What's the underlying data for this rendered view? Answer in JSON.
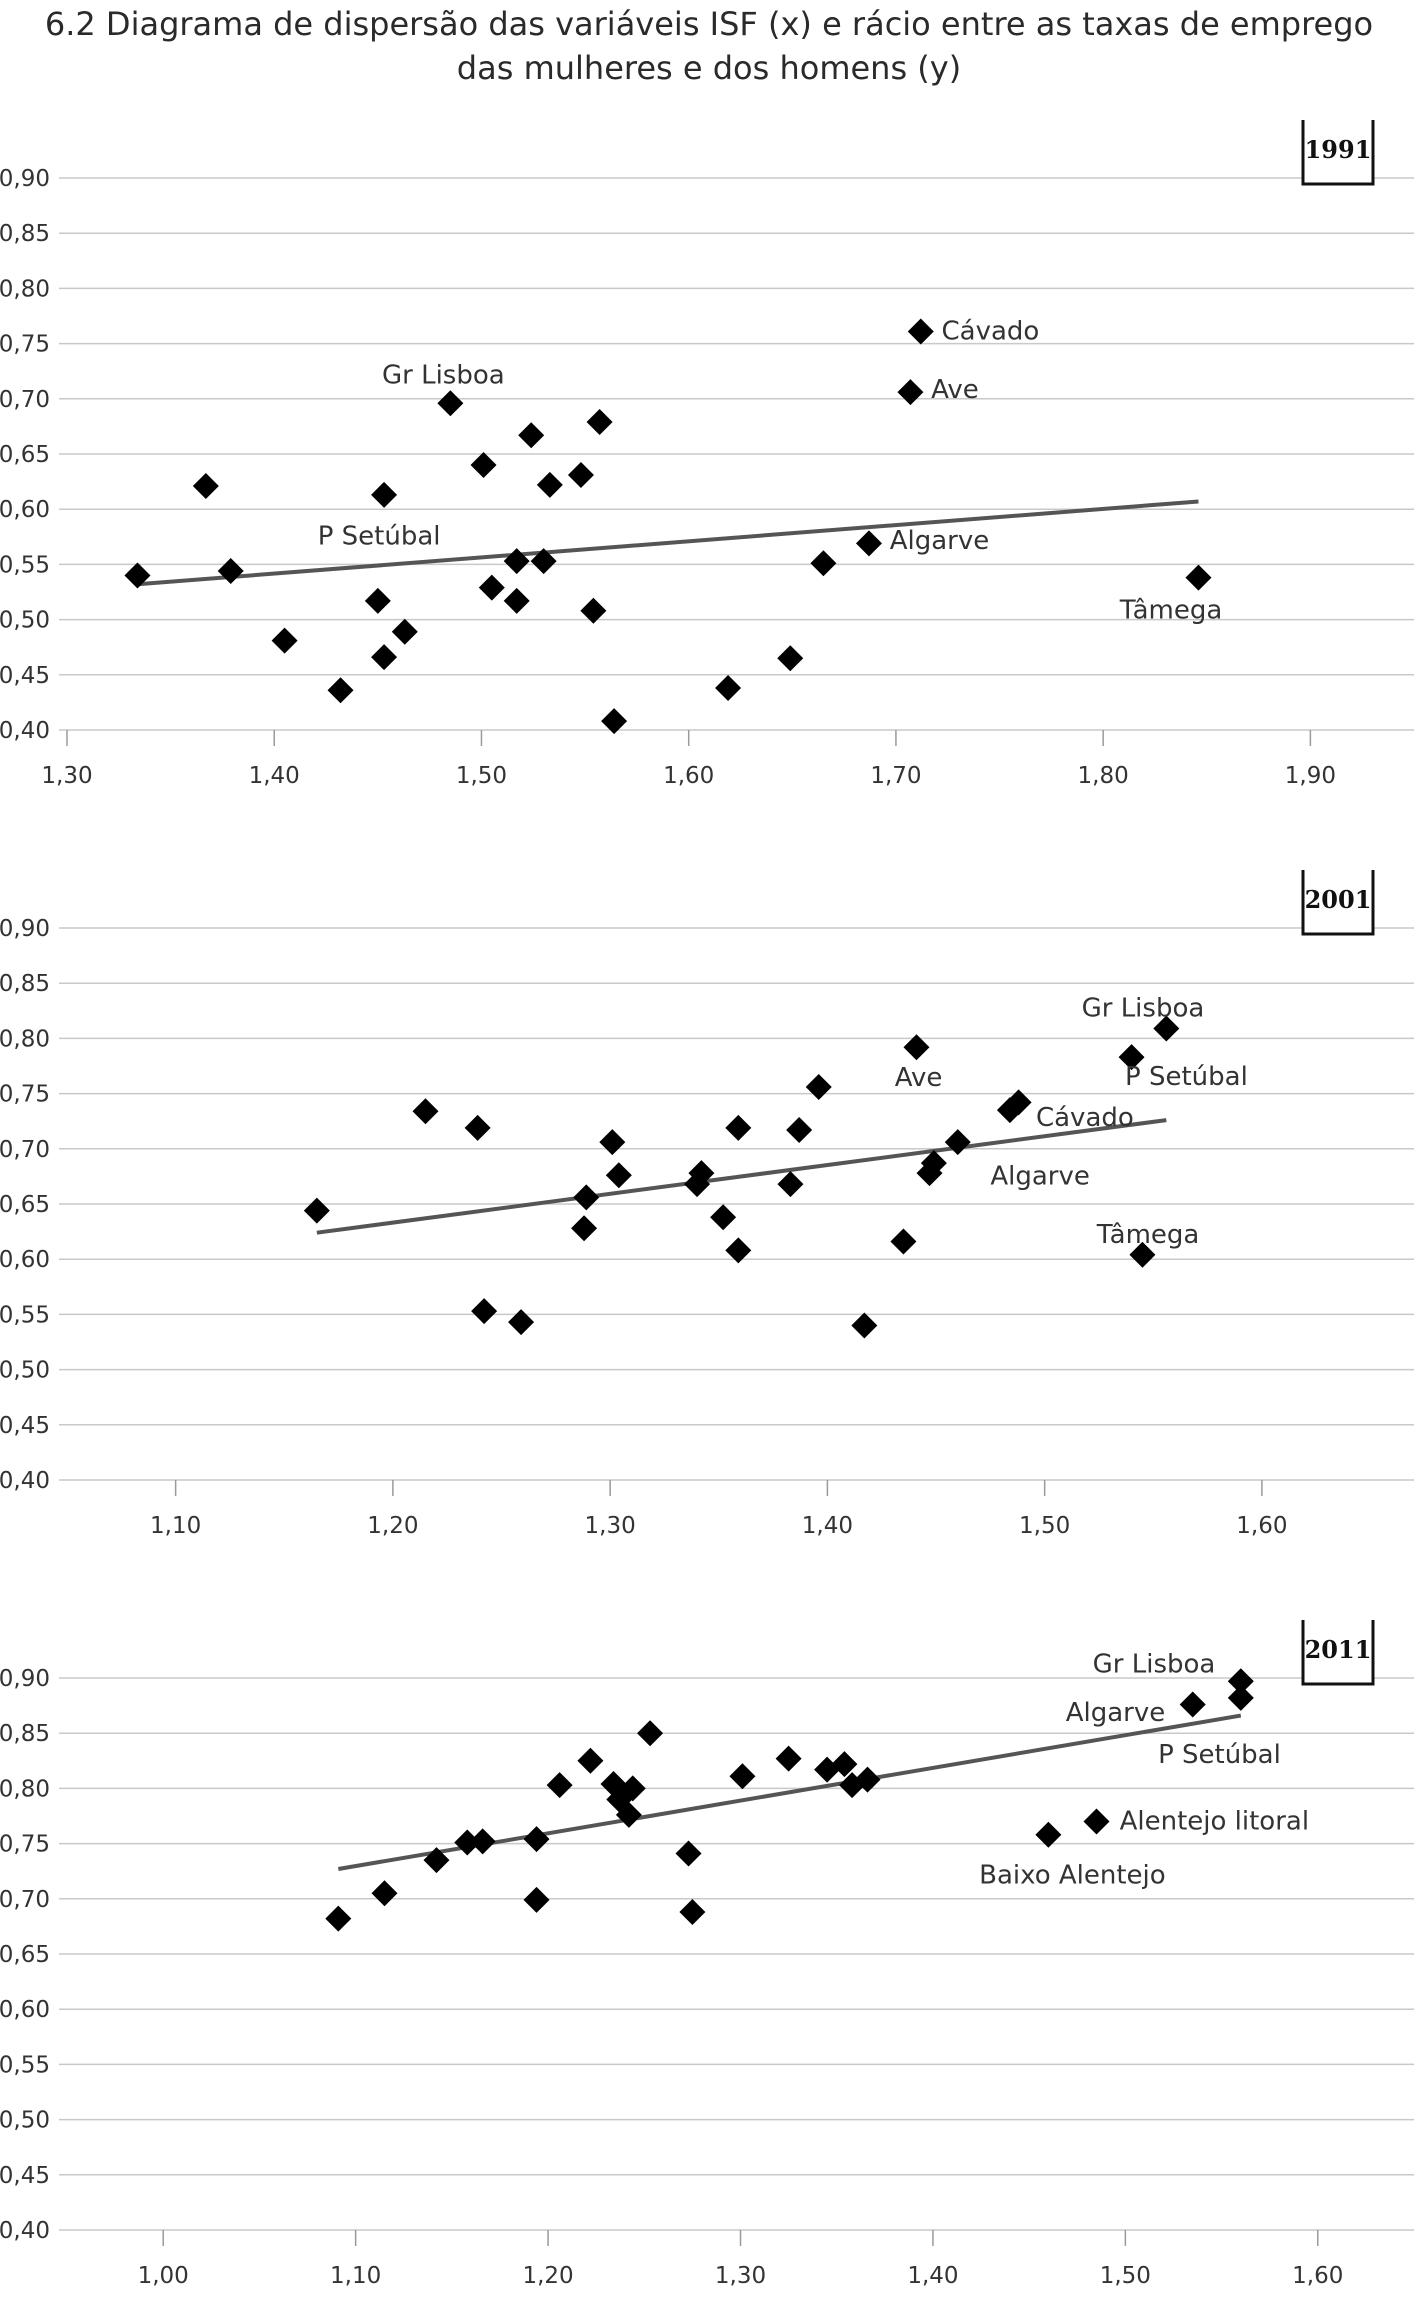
{
  "title": {
    "line1": "6.2  Diagrama de dispersão das variáveis ISF (x) e rácio entre as taxas de emprego",
    "line2": "das mulheres e dos homens (y)"
  },
  "chart_data": [
    {
      "type": "scatter",
      "year": "1991",
      "xlim": [
        1.3,
        1.95
      ],
      "ylim": [
        0.4,
        0.9
      ],
      "xticks": [
        "1,30",
        "1,40",
        "1,50",
        "1,60",
        "1,70",
        "1,80",
        "1,90"
      ],
      "yticks": [
        "0,40",
        "0,45",
        "0,50",
        "0,55",
        "0,60",
        "0,65",
        "0,70",
        "0,75",
        "0,80",
        "0,85",
        "0,90"
      ],
      "points": [
        {
          "x": 1.334,
          "y": 0.54
        },
        {
          "x": 1.367,
          "y": 0.621
        },
        {
          "x": 1.379,
          "y": 0.544
        },
        {
          "x": 1.405,
          "y": 0.481
        },
        {
          "x": 1.432,
          "y": 0.436
        },
        {
          "x": 1.45,
          "y": 0.517
        },
        {
          "x": 1.453,
          "y": 0.613
        },
        {
          "x": 1.453,
          "y": 0.466
        },
        {
          "x": 1.463,
          "y": 0.489
        },
        {
          "x": 1.485,
          "y": 0.696
        },
        {
          "x": 1.501,
          "y": 0.64
        },
        {
          "x": 1.505,
          "y": 0.529
        },
        {
          "x": 1.517,
          "y": 0.553
        },
        {
          "x": 1.517,
          "y": 0.517
        },
        {
          "x": 1.524,
          "y": 0.667
        },
        {
          "x": 1.53,
          "y": 0.553
        },
        {
          "x": 1.533,
          "y": 0.622
        },
        {
          "x": 1.548,
          "y": 0.631
        },
        {
          "x": 1.554,
          "y": 0.508
        },
        {
          "x": 1.557,
          "y": 0.679
        },
        {
          "x": 1.564,
          "y": 0.408
        },
        {
          "x": 1.619,
          "y": 0.438
        },
        {
          "x": 1.649,
          "y": 0.465
        },
        {
          "x": 1.665,
          "y": 0.551
        },
        {
          "x": 1.687,
          "y": 0.569
        },
        {
          "x": 1.707,
          "y": 0.706
        },
        {
          "x": 1.712,
          "y": 0.761
        },
        {
          "x": 1.846,
          "y": 0.538
        }
      ],
      "trend": {
        "x1": 1.334,
        "y1": 0.532,
        "x2": 1.846,
        "y2": 0.607
      },
      "labels": [
        {
          "text": "Cávado",
          "x": 1.722,
          "y": 0.762
        },
        {
          "text": "Ave",
          "x": 1.717,
          "y": 0.709
        },
        {
          "text": "Gr Lisboa",
          "x": 1.452,
          "y": 0.722
        },
        {
          "text": "P Setúbal",
          "x": 1.421,
          "y": 0.576
        },
        {
          "text": "Algarve",
          "x": 1.697,
          "y": 0.572
        },
        {
          "text": "Tâmega",
          "x": 1.808,
          "y": 0.509
        }
      ]
    },
    {
      "type": "scatter",
      "year": "2001",
      "xlim": [
        1.05,
        1.67
      ],
      "ylim": [
        0.4,
        0.9
      ],
      "xticks": [
        "1,10",
        "1,20",
        "1,30",
        "1,40",
        "1,50",
        "1,60"
      ],
      "yticks": [
        "0,40",
        "0,45",
        "0,50",
        "0,55",
        "0,60",
        "0,65",
        "0,70",
        "0,75",
        "0,80",
        "0,85",
        "0,90"
      ],
      "points": [
        {
          "x": 1.165,
          "y": 0.644
        },
        {
          "x": 1.215,
          "y": 0.734
        },
        {
          "x": 1.239,
          "y": 0.719
        },
        {
          "x": 1.242,
          "y": 0.553
        },
        {
          "x": 1.259,
          "y": 0.543
        },
        {
          "x": 1.288,
          "y": 0.628
        },
        {
          "x": 1.289,
          "y": 0.656
        },
        {
          "x": 1.301,
          "y": 0.706
        },
        {
          "x": 1.304,
          "y": 0.676
        },
        {
          "x": 1.34,
          "y": 0.668
        },
        {
          "x": 1.342,
          "y": 0.678
        },
        {
          "x": 1.352,
          "y": 0.638
        },
        {
          "x": 1.359,
          "y": 0.719
        },
        {
          "x": 1.359,
          "y": 0.608
        },
        {
          "x": 1.383,
          "y": 0.668
        },
        {
          "x": 1.387,
          "y": 0.717
        },
        {
          "x": 1.396,
          "y": 0.756
        },
        {
          "x": 1.417,
          "y": 0.54
        },
        {
          "x": 1.435,
          "y": 0.616
        },
        {
          "x": 1.441,
          "y": 0.792
        },
        {
          "x": 1.447,
          "y": 0.678
        },
        {
          "x": 1.449,
          "y": 0.687
        },
        {
          "x": 1.46,
          "y": 0.706
        },
        {
          "x": 1.484,
          "y": 0.735
        },
        {
          "x": 1.488,
          "y": 0.742
        },
        {
          "x": 1.54,
          "y": 0.783
        },
        {
          "x": 1.545,
          "y": 0.604
        },
        {
          "x": 1.556,
          "y": 0.809
        }
      ],
      "trend": {
        "x1": 1.165,
        "y1": 0.624,
        "x2": 1.556,
        "y2": 0.726
      },
      "labels": [
        {
          "text": "Gr Lisboa",
          "x": 1.517,
          "y": 0.828
        },
        {
          "text": "P Setúbal",
          "x": 1.537,
          "y": 0.766
        },
        {
          "text": "Ave",
          "x": 1.431,
          "y": 0.765
        },
        {
          "text": "Cávado",
          "x": 1.496,
          "y": 0.729
        },
        {
          "text": "Algarve",
          "x": 1.475,
          "y": 0.676
        },
        {
          "text": "Tâmega",
          "x": 1.524,
          "y": 0.623
        }
      ]
    },
    {
      "type": "scatter",
      "year": "2011",
      "xlim": [
        0.95,
        1.65
      ],
      "ylim": [
        0.4,
        0.9
      ],
      "xticks": [
        "1,00",
        "1,10",
        "1,20",
        "1,30",
        "1,40",
        "1,50",
        "1,60"
      ],
      "yticks": [
        "0,40",
        "0,45",
        "0,50",
        "0,55",
        "0,60",
        "0,65",
        "0,70",
        "0,75",
        "0,80",
        "0,85",
        "0,90"
      ],
      "points": [
        {
          "x": 1.091,
          "y": 0.682
        },
        {
          "x": 1.115,
          "y": 0.705
        },
        {
          "x": 1.142,
          "y": 0.735
        },
        {
          "x": 1.158,
          "y": 0.751
        },
        {
          "x": 1.166,
          "y": 0.752
        },
        {
          "x": 1.194,
          "y": 0.699
        },
        {
          "x": 1.194,
          "y": 0.754
        },
        {
          "x": 1.206,
          "y": 0.803
        },
        {
          "x": 1.222,
          "y": 0.825
        },
        {
          "x": 1.234,
          "y": 0.804
        },
        {
          "x": 1.237,
          "y": 0.79
        },
        {
          "x": 1.242,
          "y": 0.776
        },
        {
          "x": 1.244,
          "y": 0.8
        },
        {
          "x": 1.253,
          "y": 0.85
        },
        {
          "x": 1.273,
          "y": 0.741
        },
        {
          "x": 1.275,
          "y": 0.688
        },
        {
          "x": 1.301,
          "y": 0.811
        },
        {
          "x": 1.325,
          "y": 0.827
        },
        {
          "x": 1.345,
          "y": 0.817
        },
        {
          "x": 1.354,
          "y": 0.822
        },
        {
          "x": 1.358,
          "y": 0.803
        },
        {
          "x": 1.366,
          "y": 0.808
        },
        {
          "x": 1.46,
          "y": 0.758
        },
        {
          "x": 1.485,
          "y": 0.77
        },
        {
          "x": 1.535,
          "y": 0.876
        },
        {
          "x": 1.56,
          "y": 0.882
        },
        {
          "x": 1.56,
          "y": 0.897
        }
      ],
      "trend": {
        "x1": 1.091,
        "y1": 0.727,
        "x2": 1.56,
        "y2": 0.866
      },
      "labels": [
        {
          "text": "Gr Lisboa",
          "x": 1.483,
          "y": 0.913
        },
        {
          "text": "Algarve",
          "x": 1.469,
          "y": 0.869
        },
        {
          "text": "P Setúbal",
          "x": 1.517,
          "y": 0.831
        },
        {
          "text": "Alentejo litoral",
          "x": 1.497,
          "y": 0.771
        },
        {
          "text": "Baixo Alentejo",
          "x": 1.424,
          "y": 0.722
        }
      ]
    }
  ]
}
